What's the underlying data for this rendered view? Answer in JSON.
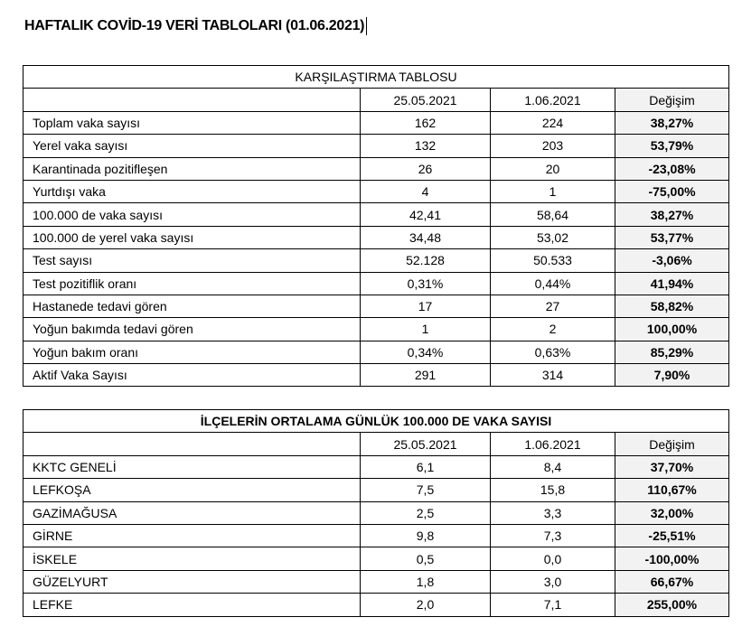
{
  "title": "HAFTALIK COVİD-19 VERİ TABLOLARI (01.06.2021)",
  "table1": {
    "caption": "KARŞILAŞTIRMA TABLOSU",
    "headers": [
      "",
      "25.05.2021",
      "1.06.2021",
      "Değişim"
    ],
    "rows": [
      [
        "Toplam vaka sayısı",
        "162",
        "224",
        "38,27%"
      ],
      [
        "Yerel vaka sayısı",
        "132",
        "203",
        "53,79%"
      ],
      [
        "Karantinada pozitifleşen",
        "26",
        "20",
        "-23,08%"
      ],
      [
        "Yurtdışı vaka",
        "4",
        "1",
        "-75,00%"
      ],
      [
        "100.000 de vaka sayısı",
        "42,41",
        "58,64",
        "38,27%"
      ],
      [
        "100.000 de yerel vaka sayısı",
        "34,48",
        "53,02",
        "53,77%"
      ],
      [
        "Test sayısı",
        "52.128",
        "50.533",
        "-3,06%"
      ],
      [
        "Test pozitiflik oranı",
        "0,31%",
        "0,44%",
        "41,94%"
      ],
      [
        "Hastanede tedavi gören",
        "17",
        "27",
        "58,82%"
      ],
      [
        "Yoğun bakımda tedavi gören",
        "1",
        "2",
        "100,00%"
      ],
      [
        "Yoğun bakım oranı",
        "0,34%",
        "0,63%",
        "85,29%"
      ],
      [
        "Aktif Vaka Sayısı",
        "291",
        "314",
        "7,90%"
      ]
    ]
  },
  "table2": {
    "caption": "İLÇELERİN ORTALAMA GÜNLÜK 100.000 DE VAKA SAYISI",
    "headers": [
      "",
      "25.05.2021",
      "1.06.2021",
      "Değişim"
    ],
    "rows": [
      [
        "KKTC GENELİ",
        "6,1",
        "8,4",
        "37,70%"
      ],
      [
        "LEFKOŞA",
        "7,5",
        "15,8",
        "110,67%"
      ],
      [
        "GAZİMAĞUSA",
        "2,5",
        "3,3",
        "32,00%"
      ],
      [
        "GİRNE",
        "9,8",
        "7,3",
        "-25,51%"
      ],
      [
        "İSKELE",
        "0,5",
        "0,0",
        "-100,00%"
      ],
      [
        "GÜZELYURT",
        "1,8",
        "3,0",
        "66,67%"
      ],
      [
        "LEFKE",
        "2,0",
        "7,1",
        "255,00%"
      ]
    ]
  }
}
